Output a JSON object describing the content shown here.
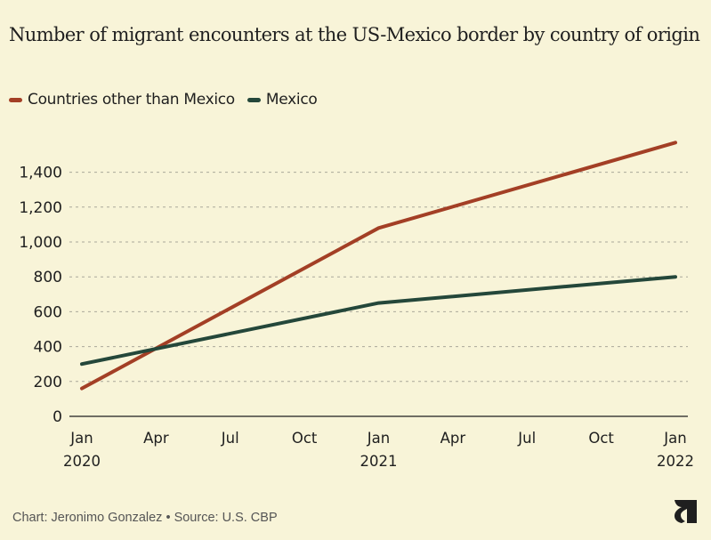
{
  "title": "Number of migrant encounters at the US-Mexico border by country of origin",
  "footer": "Chart: Jeronimo Gonzalez • Source: U.S. CBP",
  "logo_icon": "s-logo-icon",
  "chart_data": {
    "type": "line",
    "title": "Number of migrant encounters at the US-Mexico border by country of origin",
    "xlabel": "",
    "ylabel": "",
    "x": [
      "Jan 2020",
      "Jan 2021",
      "Jan 2022"
    ],
    "x_numeric_months": [
      0,
      12,
      24
    ],
    "series": [
      {
        "name": "Countries other than Mexico",
        "color": "#a33f25",
        "values": [
          160,
          1080,
          1570
        ]
      },
      {
        "name": "Mexico",
        "color": "#24473a",
        "values": [
          300,
          650,
          800
        ]
      }
    ],
    "ylim": [
      0,
      1600
    ],
    "xlim_months": [
      0,
      24
    ],
    "yticks": [
      0,
      200,
      400,
      600,
      800,
      1000,
      1200,
      1400
    ],
    "ytick_labels": [
      "0",
      "200",
      "400",
      "600",
      "800",
      "1,000",
      "1,200",
      "1,400"
    ],
    "xticks_months": [
      0,
      3,
      6,
      9,
      12,
      15,
      18,
      21,
      24
    ],
    "xtick_labels": [
      [
        "Jan",
        "2020"
      ],
      [
        "Apr",
        ""
      ],
      [
        "Jul",
        ""
      ],
      [
        "Oct",
        ""
      ],
      [
        "Jan",
        "2021"
      ],
      [
        "Apr",
        ""
      ],
      [
        "Jul",
        ""
      ],
      [
        "Oct",
        ""
      ],
      [
        "Jan",
        "2022"
      ]
    ],
    "grid": true,
    "legend_position": "top-left"
  }
}
